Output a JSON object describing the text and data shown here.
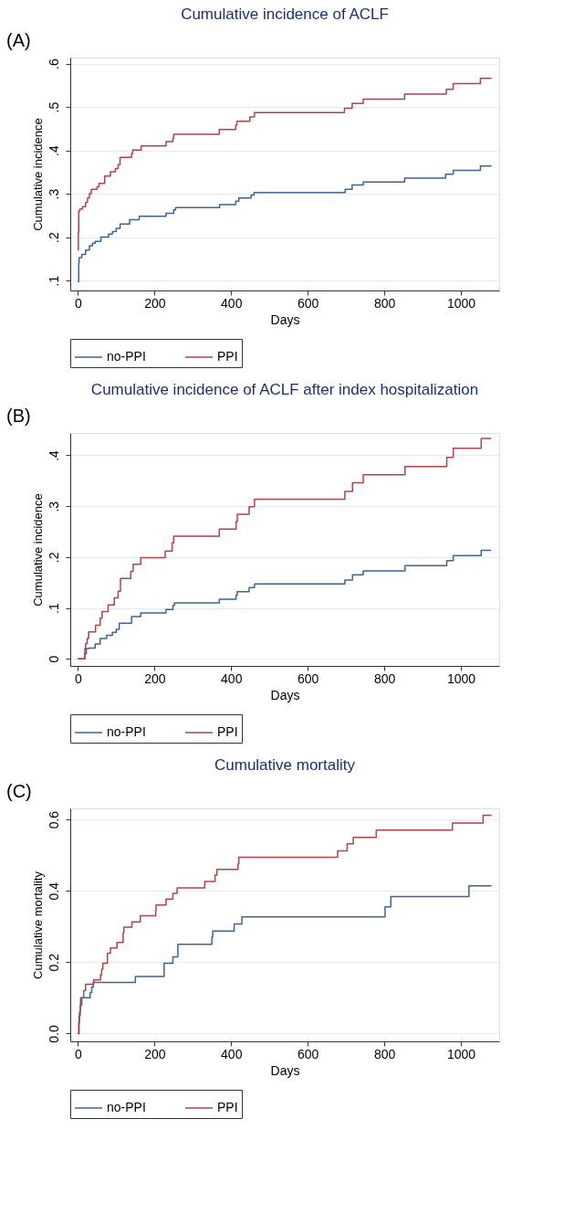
{
  "chart_data": [
    {
      "type": "step",
      "title": "Cumulative incidence of ACLF",
      "xlabel": "Days",
      "ylabel": "Cumulative incidence",
      "annotations": [
        "(A)"
      ],
      "grid": "y",
      "legend": "bottom",
      "xlim": [
        -20,
        1100
      ],
      "xticks": [
        0,
        200,
        400,
        600,
        800,
        1000
      ],
      "ylim": [
        0.077,
        0.614
      ],
      "yticks": [
        {
          "value": 0.1,
          "label": ".1"
        },
        {
          "value": 0.2,
          "label": ".2"
        },
        {
          "value": 0.3,
          "label": ".3"
        },
        {
          "value": 0.4,
          "label": ".4"
        },
        {
          "value": 0.5,
          "label": ".5"
        },
        {
          "value": 0.6,
          "label": ".6"
        }
      ],
      "series": [
        {
          "name": "no-PPI",
          "color": "#3c6496",
          "x": [
            0,
            2,
            3,
            10,
            20,
            30,
            38,
            45,
            60,
            80,
            90,
            100,
            110,
            135,
            160,
            230,
            250,
            255,
            370,
            412,
            420,
            452,
            460,
            698,
            716,
            745,
            853,
            960,
            980,
            1051,
            1080
          ],
          "values": [
            0.097,
            0.14,
            0.153,
            0.16,
            0.17,
            0.18,
            0.186,
            0.19,
            0.2,
            0.207,
            0.213,
            0.22,
            0.23,
            0.24,
            0.248,
            0.255,
            0.263,
            0.268,
            0.275,
            0.283,
            0.29,
            0.297,
            0.303,
            0.31,
            0.32,
            0.327,
            0.336,
            0.345,
            0.354,
            0.364,
            0.364
          ]
        },
        {
          "name": "PPI",
          "color": "#b0424a",
          "x": [
            0,
            1,
            2,
            5,
            12,
            20,
            25,
            30,
            35,
            50,
            55,
            70,
            85,
            98,
            105,
            110,
            140,
            143,
            165,
            230,
            248,
            250,
            369,
            412,
            415,
            449,
            461,
            696,
            716,
            745,
            853,
            962,
            980,
            1051,
            1080
          ],
          "values": [
            0.17,
            0.21,
            0.26,
            0.265,
            0.27,
            0.28,
            0.29,
            0.3,
            0.31,
            0.316,
            0.324,
            0.341,
            0.351,
            0.358,
            0.367,
            0.384,
            0.393,
            0.401,
            0.41,
            0.42,
            0.428,
            0.437,
            0.448,
            0.458,
            0.467,
            0.477,
            0.487,
            0.497,
            0.508,
            0.518,
            0.53,
            0.541,
            0.554,
            0.566,
            0.566
          ]
        }
      ]
    },
    {
      "type": "step",
      "title": "Cumulative incidence of ACLF after index hospitalization",
      "xlabel": "Days",
      "ylabel": "Cumulative incidence",
      "annotations": [
        "(B)"
      ],
      "grid": "y",
      "legend": "bottom",
      "xlim": [
        -20,
        1100
      ],
      "xticks": [
        0,
        200,
        400,
        600,
        800,
        1000
      ],
      "ylim": [
        -0.014,
        0.444
      ],
      "yticks": [
        {
          "value": 0,
          "label": "0"
        },
        {
          "value": 0.1,
          "label": ".1"
        },
        {
          "value": 0.2,
          "label": ".2"
        },
        {
          "value": 0.3,
          "label": ".3"
        },
        {
          "value": 0.4,
          "label": ".4"
        }
      ],
      "series": [
        {
          "name": "no-PPI",
          "color": "#3c6496",
          "x": [
            0,
            18,
            22,
            28,
            45,
            58,
            75,
            90,
            100,
            108,
            140,
            164,
            230,
            248,
            252,
            369,
            413,
            416,
            447,
            461,
            697,
            717,
            745,
            854,
            963,
            980,
            1053,
            1079
          ],
          "values": [
            0,
            0.01,
            0.02,
            0.021,
            0.029,
            0.04,
            0.046,
            0.052,
            0.058,
            0.07,
            0.083,
            0.09,
            0.097,
            0.105,
            0.11,
            0.117,
            0.125,
            0.132,
            0.14,
            0.147,
            0.155,
            0.165,
            0.173,
            0.183,
            0.193,
            0.203,
            0.213,
            0.213
          ]
        },
        {
          "name": "PPI",
          "color": "#b0424a",
          "x": [
            0,
            18,
            20,
            24,
            28,
            46,
            58,
            63,
            79,
            95,
            105,
            111,
            138,
            144,
            164,
            228,
            246,
            250,
            369,
            413,
            416,
            447,
            461,
            697,
            717,
            745,
            854,
            963,
            980,
            1053,
            1079
          ],
          "values": [
            0,
            0.02,
            0.03,
            0.04,
            0.053,
            0.066,
            0.08,
            0.093,
            0.106,
            0.12,
            0.133,
            0.158,
            0.172,
            0.186,
            0.199,
            0.212,
            0.228,
            0.241,
            0.255,
            0.27,
            0.284,
            0.299,
            0.314,
            0.329,
            0.346,
            0.362,
            0.378,
            0.396,
            0.414,
            0.433,
            0.433
          ]
        }
      ]
    },
    {
      "type": "step",
      "title": "Cumulative mortality",
      "xlabel": "Days",
      "ylabel": "Cumulative mortality",
      "annotations": [
        "(C)"
      ],
      "grid": "y",
      "legend": "bottom",
      "xlim": [
        -20,
        1100
      ],
      "xticks": [
        0,
        200,
        400,
        600,
        800,
        1000
      ],
      "ylim": [
        -0.022,
        0.631
      ],
      "yticks": [
        {
          "value": 0,
          "label": "0.0"
        },
        {
          "value": 0.2,
          "label": "0.2"
        },
        {
          "value": 0.4,
          "label": "0.4"
        },
        {
          "value": 0.6,
          "label": "0.6"
        }
      ],
      "series": [
        {
          "name": "no-PPI",
          "color": "#3c6496",
          "x": [
            0,
            3,
            6,
            7,
            32,
            36,
            40,
            150,
            225,
            248,
            261,
            350,
            352,
            408,
            428,
            802,
            817,
            1021,
            1080
          ],
          "values": [
            0,
            0.05,
            0.075,
            0.1,
            0.115,
            0.13,
            0.143,
            0.16,
            0.197,
            0.215,
            0.25,
            0.27,
            0.287,
            0.307,
            0.327,
            0.355,
            0.384,
            0.414,
            0.414
          ]
        },
        {
          "name": "PPI",
          "color": "#b0424a",
          "x": [
            0,
            2,
            4,
            6,
            10,
            15,
            20,
            41,
            59,
            62,
            65,
            77,
            85,
            102,
            118,
            120,
            141,
            163,
            203,
            204,
            230,
            248,
            259,
            331,
            358,
            363,
            418,
            420,
            678,
            703,
            719,
            779,
            978,
            1058,
            1080
          ],
          "values": [
            0,
            0.03,
            0.06,
            0.08,
            0.1,
            0.12,
            0.138,
            0.15,
            0.165,
            0.18,
            0.197,
            0.225,
            0.24,
            0.255,
            0.283,
            0.298,
            0.313,
            0.33,
            0.345,
            0.36,
            0.377,
            0.393,
            0.408,
            0.426,
            0.444,
            0.46,
            0.476,
            0.494,
            0.512,
            0.532,
            0.55,
            0.57,
            0.59,
            0.612,
            0.612
          ]
        }
      ]
    }
  ]
}
